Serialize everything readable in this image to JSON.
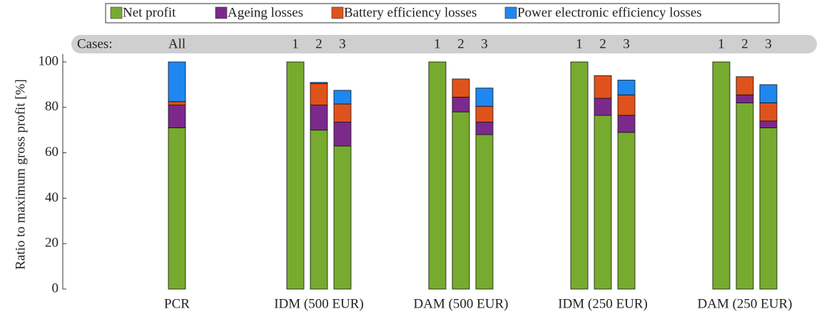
{
  "chart_data": {
    "type": "stacked_bar",
    "ylabel": "Ratio to maximum gross profit [%]",
    "cases_label": "Cases:",
    "groups": [
      {
        "label": "PCR",
        "cases": [
          "All"
        ]
      },
      {
        "label": "IDM (500 EUR)",
        "cases": [
          "1",
          "2",
          "3"
        ]
      },
      {
        "label": "DAM (500 EUR)",
        "cases": [
          "1",
          "2",
          "3"
        ]
      },
      {
        "label": "IDM (250 EUR)",
        "cases": [
          "1",
          "2",
          "3"
        ]
      },
      {
        "label": "DAM (250 EUR)",
        "cases": [
          "1",
          "2",
          "3"
        ]
      }
    ],
    "series": [
      {
        "name": "Net profit",
        "color": "#77ab2f",
        "values": [
          71,
          100,
          70,
          63,
          100,
          78,
          68,
          100,
          76.5,
          69,
          100,
          82,
          71
        ]
      },
      {
        "name": "Ageing losses",
        "color": "#7b2a8c",
        "values": [
          10,
          0,
          11,
          10.5,
          0,
          6.5,
          5.5,
          0,
          7.5,
          7.5,
          0,
          3.5,
          3
        ]
      },
      {
        "name": "Battery efficiency losses",
        "color": "#e0521c",
        "values": [
          1.5,
          0,
          9.5,
          8,
          0,
          8,
          7,
          0,
          10,
          9,
          0,
          8,
          8
        ]
      },
      {
        "name": "Power electronic efficiency losses",
        "color": "#1e87f0",
        "values": [
          17.5,
          0,
          0.5,
          6,
          0,
          0,
          8,
          0,
          0,
          6.5,
          0,
          0,
          8
        ]
      }
    ],
    "ylim": [
      0,
      100
    ],
    "yticks": [
      0,
      20,
      40,
      60,
      80,
      100
    ]
  }
}
